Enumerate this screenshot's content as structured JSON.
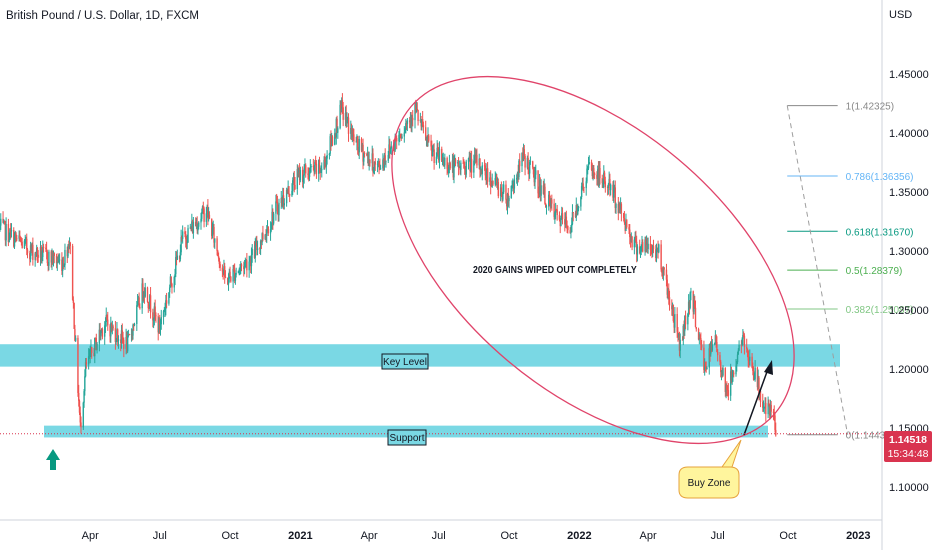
{
  "header": {
    "symbol_title": "British Pound / U.S. Dollar, 1D, FXCM",
    "currency": "USD"
  },
  "price_label": {
    "price": "1.14518",
    "countdown": "15:34:48"
  },
  "annotations": {
    "headline": "2020 GAINS WIPED OUT COMPLETELY",
    "key_level": "Key Level",
    "support": "Support",
    "buy_zone": "Buy Zone"
  },
  "colors": {
    "zone": "#7ad8e4",
    "ellipse": "#e0446a",
    "price": "#d9344f",
    "up": "#26a69a",
    "down": "#ef5350"
  },
  "chart_data": {
    "type": "candlestick",
    "title": "British Pound / U.S. Dollar, 1D, FXCM",
    "ylabel": "USD",
    "ylim": [
      1.055,
      1.485
    ],
    "yticks": [
      "1.45000",
      "1.40000",
      "1.35000",
      "1.30000",
      "1.25000",
      "1.20000",
      "1.15000",
      "1.10000"
    ],
    "ytick_values": [
      1.45,
      1.4,
      1.35,
      1.3,
      1.25,
      1.2,
      1.15,
      1.1
    ],
    "xticks": [
      "Apr",
      "Jul",
      "Oct",
      "2021",
      "Apr",
      "Jul",
      "Oct",
      "2022",
      "Apr",
      "Jul",
      "Oct",
      "2023"
    ],
    "xtick_dates": [
      "2020-04-01",
      "2020-07-01",
      "2020-10-01",
      "2021-01-01",
      "2021-04-01",
      "2021-07-01",
      "2021-10-01",
      "2022-01-01",
      "2022-04-01",
      "2022-07-01",
      "2022-10-01",
      "2023-01-01"
    ],
    "xrange": [
      "2019-12-05",
      "2023-02-01"
    ],
    "price_path": [
      [
        "2019-12-05",
        1.32
      ],
      [
        "2020-01-15",
        1.3
      ],
      [
        "2020-02-25",
        1.29
      ],
      [
        "2020-03-05",
        1.31
      ],
      [
        "2020-03-19",
        1.15
      ],
      [
        "2020-03-26",
        1.2
      ],
      [
        "2020-04-20",
        1.24
      ],
      [
        "2020-05-20",
        1.22
      ],
      [
        "2020-06-10",
        1.27
      ],
      [
        "2020-06-30",
        1.235
      ],
      [
        "2020-07-31",
        1.31
      ],
      [
        "2020-08-31",
        1.335
      ],
      [
        "2020-09-25",
        1.275
      ],
      [
        "2020-10-30",
        1.295
      ],
      [
        "2020-11-30",
        1.335
      ],
      [
        "2020-12-31",
        1.365
      ],
      [
        "2021-01-30",
        1.37
      ],
      [
        "2021-02-24",
        1.42
      ],
      [
        "2021-03-15",
        1.39
      ],
      [
        "2021-04-12",
        1.37
      ],
      [
        "2021-05-31",
        1.42
      ],
      [
        "2021-06-20",
        1.385
      ],
      [
        "2021-07-20",
        1.37
      ],
      [
        "2021-08-20",
        1.375
      ],
      [
        "2021-09-29",
        1.345
      ],
      [
        "2021-10-20",
        1.38
      ],
      [
        "2021-11-30",
        1.33
      ],
      [
        "2021-12-20",
        1.32
      ],
      [
        "2022-01-13",
        1.37
      ],
      [
        "2022-02-10",
        1.355
      ],
      [
        "2022-03-15",
        1.305
      ],
      [
        "2022-04-15",
        1.3
      ],
      [
        "2022-05-13",
        1.22
      ],
      [
        "2022-05-27",
        1.265
      ],
      [
        "2022-06-14",
        1.2
      ],
      [
        "2022-06-27",
        1.225
      ],
      [
        "2022-07-14",
        1.18
      ],
      [
        "2022-08-01",
        1.225
      ],
      [
        "2022-08-12",
        1.21
      ],
      [
        "2022-09-01",
        1.165
      ],
      [
        "2022-09-12",
        1.16
      ],
      [
        "2022-09-15",
        1.145
      ]
    ],
    "horizontal_zones": [
      {
        "label": "Key Level",
        "from": 1.202,
        "to": 1.221
      },
      {
        "label": "Support",
        "from": 1.142,
        "to": 1.152
      }
    ],
    "fibonacci": {
      "from_date": "2022-09-30",
      "to_date": "2022-12-05",
      "levels": [
        {
          "label": "1(1.42325)",
          "value": 1.42325,
          "color": "#888888"
        },
        {
          "label": "0.786(1.36356)",
          "value": 1.36356,
          "color": "#64b5f6"
        },
        {
          "label": "0.618(1.31670)",
          "value": 1.3167,
          "color": "#089981"
        },
        {
          "label": "0.5(1.28379)",
          "value": 1.28379,
          "color": "#4caf50"
        },
        {
          "label": "0.382(1.25087)",
          "value": 1.25087,
          "color": "#81c784"
        },
        {
          "label": "0(1.14432)",
          "value": 1.14432,
          "color": "#888888"
        }
      ]
    },
    "current_price": 1.14518
  }
}
